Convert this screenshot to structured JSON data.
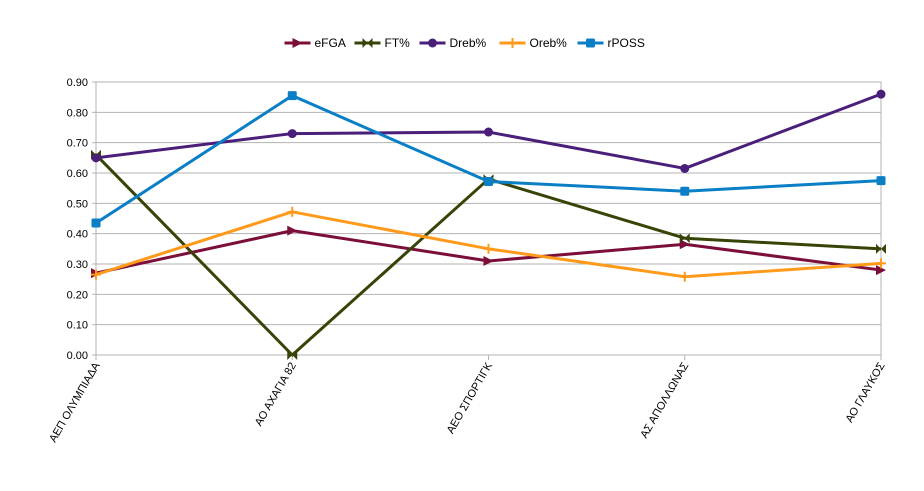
{
  "chart_data": {
    "type": "line",
    "title": "",
    "xlabel": "",
    "ylabel": "",
    "ylim": [
      0,
      0.9
    ],
    "yticks": [
      "0.00",
      "0.10",
      "0.20",
      "0.30",
      "0.40",
      "0.50",
      "0.60",
      "0.70",
      "0.80",
      "0.90"
    ],
    "grid": true,
    "legend_position": "top-center",
    "categories": [
      "ΑΕΠ ΟΛΥΜΠΙΑΔΑ",
      "ΑΟ ΑΧΑΓΙΑ 82",
      "ΑΕΟ ΣΠΟΡΤΙΓΚ",
      "ΑΣ ΑΠΟΛΛΩΝΑΣ",
      "ΑΟ ΓΛΑΥΚΟΣ"
    ],
    "series": [
      {
        "name": "eFGA",
        "color": "#7b0f3a",
        "marker": "triangle",
        "values": [
          0.27,
          0.41,
          0.31,
          0.365,
          0.28
        ]
      },
      {
        "name": "FT%",
        "color": "#374407",
        "marker": "bowtie",
        "values": [
          0.66,
          0.0,
          0.58,
          0.385,
          0.35
        ]
      },
      {
        "name": "Dreb%",
        "color": "#4a1f7a",
        "marker": "circle",
        "values": [
          0.65,
          0.73,
          0.735,
          0.615,
          0.86
        ]
      },
      {
        "name": "Oreb%",
        "color": "#ff9a1a",
        "marker": "plus",
        "values": [
          0.265,
          0.472,
          0.35,
          0.258,
          0.302
        ]
      },
      {
        "name": "rPOSS",
        "color": "#0a7fc6",
        "marker": "square",
        "values": [
          0.435,
          0.855,
          0.572,
          0.54,
          0.575
        ]
      }
    ]
  }
}
